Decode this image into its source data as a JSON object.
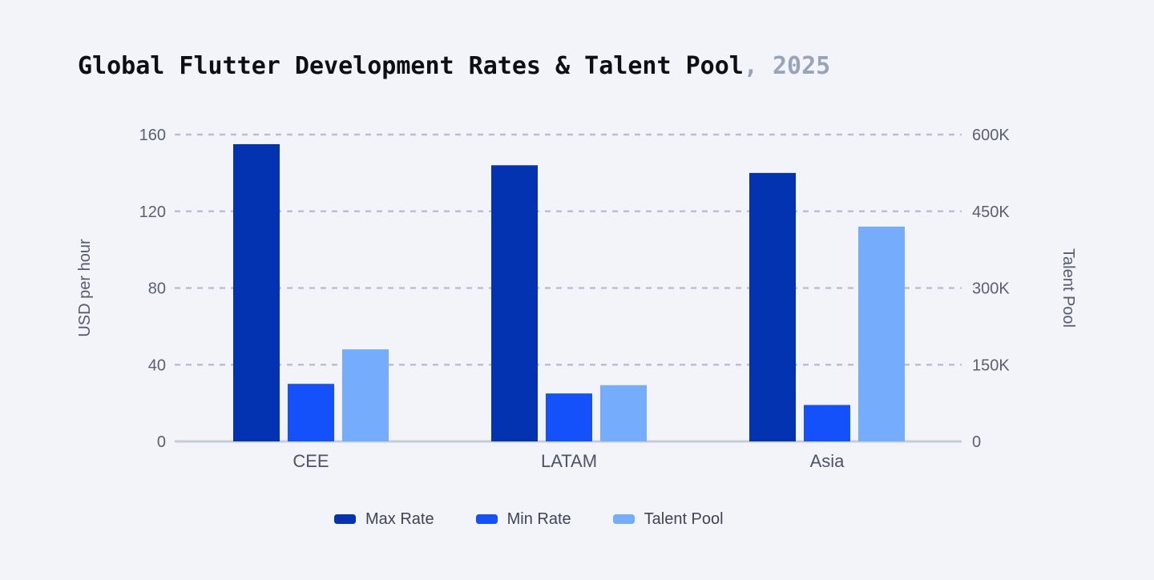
{
  "title": {
    "main": "Global Flutter Development Rates & Talent Pool",
    "year": ", 2025"
  },
  "chart_data": {
    "type": "bar",
    "title": "Global Flutter Development Rates & Talent Pool, 2025",
    "categories": [
      "CEE",
      "LATAM",
      "Asia"
    ],
    "series": [
      {
        "name": "Max Rate",
        "axis": "left",
        "color": "#0333b0",
        "values": [
          155,
          144,
          140
        ]
      },
      {
        "name": "Min Rate",
        "axis": "left",
        "color": "#1551fb",
        "values": [
          30,
          25,
          19
        ]
      },
      {
        "name": "Talent Pool",
        "axis": "right",
        "color": "#75acfb",
        "values": [
          180000,
          110000,
          420000
        ]
      }
    ],
    "left_axis": {
      "label": "USD per hour",
      "tick_labels": [
        "0",
        "40",
        "80",
        "120",
        "160"
      ],
      "range": [
        0,
        160
      ]
    },
    "right_axis": {
      "label": "Talent Pool",
      "tick_labels": [
        "0",
        "150K",
        "300K",
        "450K",
        "600K"
      ],
      "range": [
        0,
        600000
      ]
    },
    "grid": "horizontal-dashed",
    "legend_position": "bottom"
  },
  "colors": {
    "background": "#f3f4f9",
    "title_text": "#0e0f14",
    "year_text": "#9aa4b9",
    "gridline": "#b9c1d0",
    "axis_line": "#c5cbd8",
    "tick_text": "#5a5f73",
    "category_text": "#4d5366",
    "axis_title_text": "#565c70",
    "legend_text": "#3e4455"
  }
}
